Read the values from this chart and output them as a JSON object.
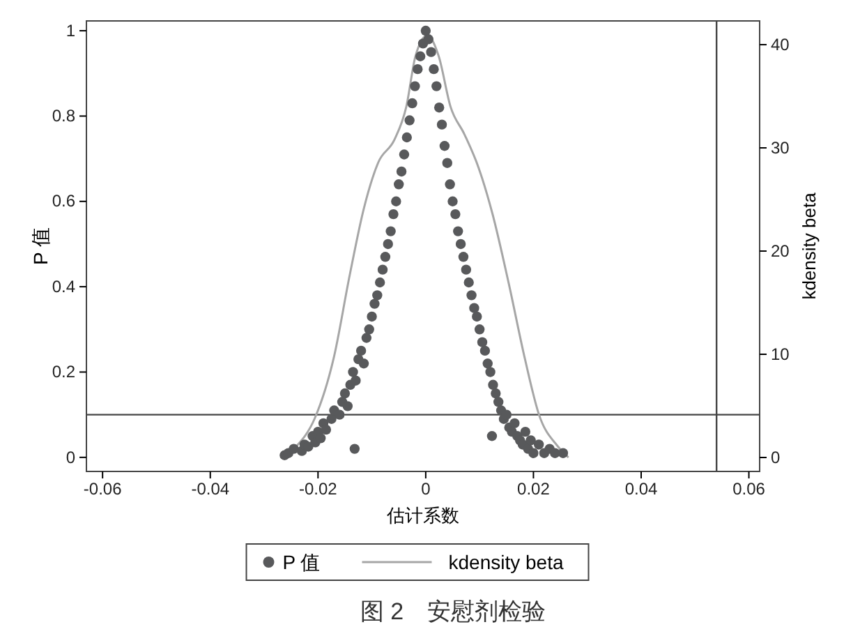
{
  "chart_data": {
    "type": "scatter",
    "title": "图 2　安慰剂检验",
    "xlabel": "估计系数",
    "ylabel": "P 值",
    "y2label": "kdensity beta",
    "xlim": [
      -0.063,
      0.062
    ],
    "xticks": [
      -0.06,
      -0.04,
      -0.02,
      0,
      0.02,
      0.04,
      0.06
    ],
    "ylim": [
      -0.033,
      1.023
    ],
    "yticks": [
      0,
      0.2,
      0.4,
      0.6,
      0.8,
      1
    ],
    "y2lim": [
      -1.35,
      42.3
    ],
    "y2ticks": [
      0,
      10,
      20,
      30,
      40
    ],
    "grid": false,
    "legend": "bottom",
    "ref_lines": [
      {
        "axis": "y",
        "value": 0.1,
        "color": "#444444"
      },
      {
        "axis": "x",
        "value": 0.054,
        "color": "#444444"
      }
    ],
    "series": [
      {
        "name": "P 值",
        "marker": "circle",
        "color": "#58595b",
        "x": [
          -0.0262,
          -0.0255,
          -0.0245,
          -0.023,
          -0.0225,
          -0.0218,
          -0.021,
          -0.0205,
          -0.02,
          -0.0195,
          -0.019,
          -0.0185,
          -0.0175,
          -0.017,
          -0.016,
          -0.0155,
          -0.015,
          -0.0145,
          -0.014,
          -0.0135,
          -0.013,
          -0.0132,
          -0.0125,
          -0.012,
          -0.0115,
          -0.011,
          -0.0105,
          -0.01,
          -0.0095,
          -0.009,
          -0.0085,
          -0.008,
          -0.0075,
          -0.007,
          -0.0065,
          -0.006,
          -0.0055,
          -0.005,
          -0.0045,
          -0.004,
          -0.0035,
          -0.003,
          -0.0025,
          -0.002,
          -0.0015,
          -0.001,
          -0.0005,
          0,
          0.0005,
          0.001,
          0.0015,
          0.002,
          0.0025,
          0.003,
          0.0035,
          0.004,
          0.0045,
          0.005,
          0.0055,
          0.006,
          0.0065,
          0.007,
          0.0075,
          0.008,
          0.0085,
          0.009,
          0.0095,
          0.01,
          0.0105,
          0.011,
          0.0115,
          0.012,
          0.0125,
          0.0123,
          0.013,
          0.0135,
          0.014,
          0.0145,
          0.015,
          0.0155,
          0.016,
          0.0165,
          0.017,
          0.0175,
          0.018,
          0.0185,
          0.019,
          0.0195,
          0.02,
          0.021,
          0.022,
          0.023,
          0.024,
          0.0255
        ],
        "values": [
          0.005,
          0.01,
          0.02,
          0.015,
          0.03,
          0.025,
          0.05,
          0.035,
          0.06,
          0.045,
          0.08,
          0.065,
          0.09,
          0.11,
          0.1,
          0.13,
          0.15,
          0.12,
          0.17,
          0.2,
          0.18,
          0.02,
          0.23,
          0.25,
          0.22,
          0.28,
          0.3,
          0.33,
          0.36,
          0.38,
          0.41,
          0.44,
          0.47,
          0.5,
          0.53,
          0.57,
          0.6,
          0.64,
          0.67,
          0.71,
          0.75,
          0.79,
          0.83,
          0.87,
          0.91,
          0.94,
          0.97,
          1,
          0.98,
          0.95,
          0.91,
          0.87,
          0.82,
          0.78,
          0.73,
          0.69,
          0.64,
          0.6,
          0.57,
          0.53,
          0.5,
          0.47,
          0.44,
          0.41,
          0.38,
          0.35,
          0.33,
          0.3,
          0.27,
          0.25,
          0.22,
          0.2,
          0.17,
          0.05,
          0.15,
          0.13,
          0.11,
          0.09,
          0.1,
          0.07,
          0.06,
          0.08,
          0.05,
          0.04,
          0.03,
          0.06,
          0.02,
          0.04,
          0.01,
          0.03,
          0.01,
          0.02,
          0.01,
          0.01
        ]
      },
      {
        "name": "kdensity beta",
        "type": "line",
        "axis": "y2",
        "color": "#a6a6a6",
        "x": [
          -0.0267,
          -0.024,
          -0.0206,
          -0.0171,
          -0.0141,
          -0.0115,
          -0.0088,
          -0.0058,
          -0.0036,
          -0.0019,
          0.0003,
          0.0024,
          0.0046,
          0.0072,
          0.0098,
          0.0124,
          0.0154,
          0.0184,
          0.021,
          0.0245,
          0.0265
        ],
        "values": [
          0,
          1.1,
          3.8,
          9.6,
          17.7,
          24.1,
          28.6,
          30.8,
          34,
          38.9,
          40.9,
          38.9,
          34,
          31.3,
          28.1,
          23.6,
          16.9,
          9.6,
          4.2,
          1.1,
          0
        ]
      }
    ]
  }
}
